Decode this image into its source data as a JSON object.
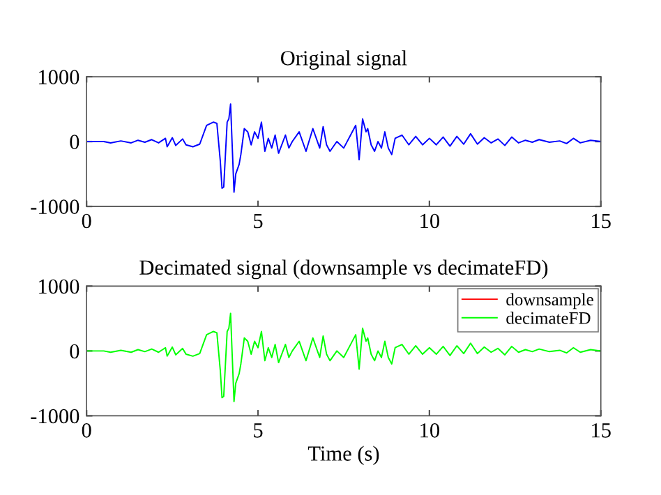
{
  "chart_data": [
    {
      "type": "line",
      "title": "Original signal",
      "xlim": [
        0,
        15
      ],
      "ylim": [
        -1000,
        1000
      ],
      "xticks": [
        0,
        5,
        10,
        15
      ],
      "yticks": [
        -1000,
        0,
        1000
      ],
      "grid": false,
      "legend": false,
      "x": [
        0,
        0.5,
        0.7,
        1.0,
        1.3,
        1.5,
        1.7,
        1.9,
        2.1,
        2.3,
        2.35,
        2.5,
        2.6,
        2.8,
        2.9,
        3.1,
        3.3,
        3.5,
        3.7,
        3.8,
        3.9,
        3.95,
        4.0,
        4.05,
        4.1,
        4.15,
        4.2,
        4.25,
        4.3,
        4.35,
        4.45,
        4.5,
        4.6,
        4.7,
        4.8,
        4.9,
        5.0,
        5.1,
        5.2,
        5.3,
        5.4,
        5.5,
        5.6,
        5.8,
        5.9,
        6.0,
        6.2,
        6.4,
        6.6,
        6.8,
        6.9,
        7.0,
        7.1,
        7.3,
        7.5,
        7.7,
        7.85,
        7.95,
        8.05,
        8.15,
        8.2,
        8.3,
        8.4,
        8.5,
        8.6,
        8.7,
        8.8,
        8.9,
        9.0,
        9.2,
        9.4,
        9.6,
        9.8,
        10.0,
        10.2,
        10.4,
        10.6,
        10.8,
        11.0,
        11.2,
        11.4,
        11.6,
        11.8,
        12.0,
        12.2,
        12.4,
        12.6,
        12.8,
        13.0,
        13.2,
        13.5,
        13.8,
        14.0,
        14.2,
        14.4,
        14.7,
        15
      ],
      "series": [
        {
          "color": "#0000ff",
          "values": [
            0,
            0,
            -20,
            10,
            -20,
            20,
            -10,
            30,
            -20,
            50,
            -80,
            60,
            -60,
            40,
            -50,
            -80,
            -40,
            250,
            300,
            280,
            -300,
            -720,
            -700,
            -200,
            300,
            350,
            580,
            -100,
            -780,
            -500,
            -350,
            -200,
            200,
            150,
            -50,
            150,
            50,
            300,
            -150,
            50,
            -100,
            100,
            -180,
            100,
            -100,
            0,
            150,
            -150,
            200,
            -100,
            230,
            -50,
            -150,
            0,
            -100,
            100,
            250,
            -280,
            350,
            150,
            200,
            -50,
            -150,
            0,
            -100,
            150,
            -100,
            -200,
            50,
            100,
            -50,
            80,
            -50,
            50,
            -50,
            70,
            -70,
            80,
            -40,
            120,
            -40,
            60,
            -20,
            40,
            -60,
            70,
            -20,
            20,
            -10,
            30,
            -10,
            10,
            -30,
            50,
            -20,
            20,
            0
          ]
        }
      ]
    },
    {
      "type": "line",
      "title": "Decimated signal (downsample vs decimateFD)",
      "xlabel": "Time (s)",
      "xlim": [
        0,
        15
      ],
      "ylim": [
        -1000,
        1000
      ],
      "xticks": [
        0,
        5,
        10,
        15
      ],
      "yticks": [
        -1000,
        0,
        1000
      ],
      "grid": false,
      "legend": "top right",
      "x": [
        0,
        0.5,
        0.7,
        1.0,
        1.3,
        1.5,
        1.7,
        1.9,
        2.1,
        2.3,
        2.35,
        2.5,
        2.6,
        2.8,
        2.9,
        3.1,
        3.3,
        3.5,
        3.7,
        3.8,
        3.9,
        3.95,
        4.0,
        4.05,
        4.1,
        4.15,
        4.2,
        4.25,
        4.3,
        4.35,
        4.45,
        4.5,
        4.6,
        4.7,
        4.8,
        4.9,
        5.0,
        5.1,
        5.2,
        5.3,
        5.4,
        5.5,
        5.6,
        5.8,
        5.9,
        6.0,
        6.2,
        6.4,
        6.6,
        6.8,
        6.9,
        7.0,
        7.1,
        7.3,
        7.5,
        7.7,
        7.85,
        7.95,
        8.05,
        8.15,
        8.2,
        8.3,
        8.4,
        8.5,
        8.6,
        8.7,
        8.8,
        8.9,
        9.0,
        9.2,
        9.4,
        9.6,
        9.8,
        10.0,
        10.2,
        10.4,
        10.6,
        10.8,
        11.0,
        11.2,
        11.4,
        11.6,
        11.8,
        12.0,
        12.2,
        12.4,
        12.6,
        12.8,
        13.0,
        13.2,
        13.5,
        13.8,
        14.0,
        14.2,
        14.4,
        14.7,
        15
      ],
      "series": [
        {
          "name": "downsample",
          "color": "#ff0000",
          "values": [
            null,
            null,
            null,
            null,
            null,
            null,
            null,
            null,
            null,
            null,
            null,
            null,
            null,
            null,
            null,
            null,
            null,
            null,
            null,
            null,
            null,
            null,
            null,
            null,
            null,
            null,
            null,
            null,
            null,
            null,
            null,
            null,
            null,
            null,
            null,
            null,
            null,
            null,
            null,
            null,
            null,
            null,
            null,
            null,
            null,
            null,
            null,
            null,
            null,
            null,
            null,
            null,
            null,
            null,
            null,
            null,
            null,
            null,
            null,
            null,
            null,
            null,
            null,
            null,
            null,
            null,
            null,
            null,
            null,
            null,
            null,
            null,
            null,
            null,
            null,
            null,
            null,
            null,
            null,
            null,
            null,
            null,
            null,
            null,
            null,
            null,
            null,
            null,
            null,
            null,
            null,
            null,
            null,
            null,
            null,
            null,
            null
          ]
        },
        {
          "name": "decimateFD",
          "color": "#00ff00",
          "values": [
            0,
            0,
            -20,
            10,
            -20,
            20,
            -10,
            30,
            -20,
            50,
            -80,
            60,
            -60,
            40,
            -50,
            -80,
            -40,
            250,
            300,
            280,
            -300,
            -720,
            -700,
            -200,
            300,
            350,
            580,
            -100,
            -780,
            -500,
            -350,
            -200,
            200,
            150,
            -50,
            150,
            50,
            300,
            -150,
            50,
            -100,
            100,
            -180,
            100,
            -100,
            0,
            150,
            -150,
            200,
            -100,
            230,
            -50,
            -150,
            0,
            -100,
            100,
            250,
            -280,
            350,
            150,
            200,
            -50,
            -150,
            0,
            -100,
            150,
            -100,
            -200,
            50,
            100,
            -50,
            80,
            -50,
            50,
            -50,
            70,
            -70,
            80,
            -40,
            120,
            -40,
            60,
            -20,
            40,
            -60,
            70,
            -20,
            20,
            -10,
            30,
            -10,
            10,
            -30,
            50,
            -20,
            20,
            0
          ]
        }
      ]
    }
  ]
}
